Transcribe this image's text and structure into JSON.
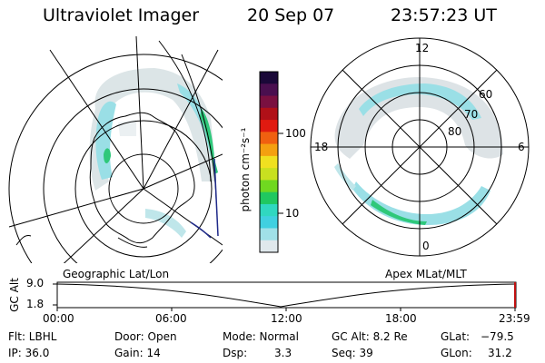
{
  "header": {
    "instrument": "Ultraviolet Imager",
    "date": "20 Sep 07",
    "time": "23:57:23 UT"
  },
  "colorbar": {
    "unit_label": "photon cm⁻²s⁻¹",
    "ticks": [
      "100",
      "10"
    ],
    "colors": [
      "#1a0838",
      "#4a0f4f",
      "#7a1040",
      "#b01018",
      "#e01a10",
      "#f06010",
      "#f4a010",
      "#f0e020",
      "#c8e020",
      "#70d820",
      "#20c860",
      "#30d8c0",
      "#40d0e0",
      "#a0e0e8",
      "#e0e8ec"
    ]
  },
  "geo_plot": {
    "label": "Geographic Lat/Lon"
  },
  "polar_plot": {
    "label": "Apex MLat/MLT",
    "mlt_labels": [
      "12",
      "18",
      "6",
      "0"
    ],
    "lat_labels": [
      "60",
      "70",
      "80"
    ]
  },
  "altitude_plot": {
    "ylabel": "GC Alt",
    "yticks": [
      "9.0",
      "1.8"
    ],
    "xticks": [
      "00:00",
      "06:00",
      "12:00",
      "18:00",
      "23:59"
    ]
  },
  "status": {
    "filter": "Flt: LBHL",
    "ip": "IP: 36.0",
    "door": "Door: Open",
    "gain": "Gain: 14",
    "mode": "Mode: Normal",
    "dsp_label": "Dsp:",
    "dsp_value": "3.3",
    "gc_alt": "GC Alt: 8.2 Re",
    "seq": "Seq: 39",
    "glat_label": "GLat:",
    "glat_value": "−79.5",
    "glon_label": "GLon:",
    "glon_value": "31.2"
  }
}
